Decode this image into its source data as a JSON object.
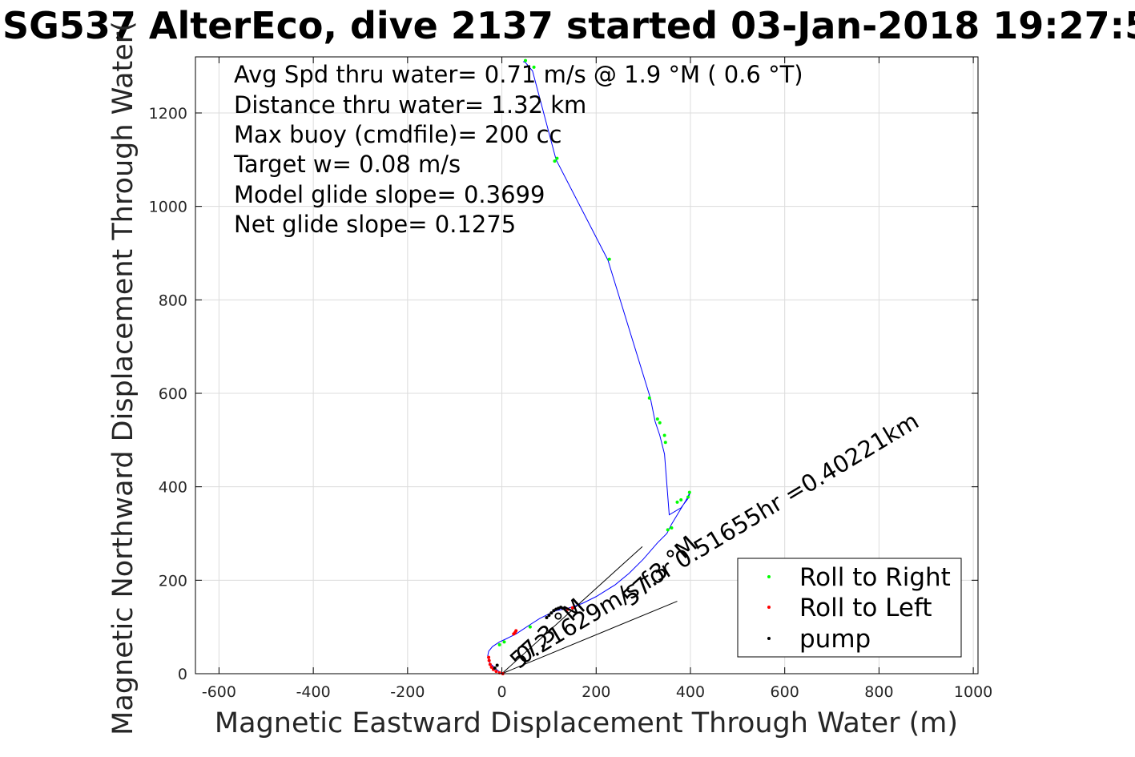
{
  "chart_data": {
    "type": "line",
    "title": "SG537 AlterEco, dive 2137 started 03-Jan-2018 19:27:5",
    "xlabel": "Magnetic Eastward Displacement Through Water (m)",
    "ylabel": "Magnetic Northward Displacement Through Water(",
    "xlim": [
      -650,
      1010
    ],
    "ylim": [
      0,
      1320
    ],
    "xticks": [
      -600,
      -400,
      -200,
      0,
      200,
      400,
      600,
      800,
      1000
    ],
    "yticks": [
      0,
      200,
      400,
      600,
      800,
      1000,
      1200
    ],
    "grid": true,
    "legend_position": "bottom-right",
    "info_lines": [
      "Avg Spd thru water=  0.71 m/s @   1.9 °M (  0.6 °T)",
      "Distance thru water=  1.32 km",
      "Max buoy (cmdfile)= 200 cc",
      "Target w= 0.08 m/s",
      "Model glide slope= 0.3699",
      "Net glide slope= 0.1275"
    ],
    "annotations": [
      "0.21629m/s for 0.51655hr =0.40221km",
      "57.3 °M",
      "57.3 °M"
    ],
    "colors": {
      "track": "#0000ff",
      "roll_right": "#00ff00",
      "roll_left": "#ff0000",
      "pump": "#000000",
      "grid": "#dcdcdc"
    },
    "series": [
      {
        "name": "track",
        "x": [
          0,
          -10,
          -25,
          -30,
          -28,
          -20,
          -5,
          10,
          30,
          45,
          60,
          80,
          100,
          115,
          140,
          170,
          200,
          240,
          270,
          300,
          330,
          350,
          360,
          375,
          390,
          400,
          395,
          380,
          355,
          345,
          335,
          325,
          315,
          225,
          115,
          65,
          50,
          45
        ],
        "y": [
          0,
          8,
          22,
          38,
          48,
          58,
          68,
          75,
          85,
          95,
          105,
          118,
          128,
          135,
          140,
          150,
          165,
          190,
          215,
          245,
          280,
          300,
          320,
          345,
          370,
          390,
          375,
          355,
          340,
          470,
          510,
          540,
          590,
          885,
          1100,
          1290,
          1308,
          1310
        ]
      }
    ],
    "scatter": [
      {
        "name": "Roll to Right",
        "x": [
          -5,
          5,
          60,
          330,
          335,
          345,
          347,
          313,
          228,
          117,
          112,
          68,
          50,
          372,
          380,
          395,
          398,
          352,
          360
        ],
        "y": [
          62,
          68,
          100,
          545,
          537,
          510,
          495,
          590,
          887,
          1103,
          1097,
          1298,
          1312,
          367,
          372,
          378,
          388,
          308,
          312
        ]
      },
      {
        "name": "Roll to Left",
        "x": [
          -28,
          -27,
          -25,
          -22,
          -18,
          -12,
          -5,
          2,
          25,
          28,
          30,
          140,
          150
        ],
        "y": [
          35,
          28,
          20,
          14,
          9,
          5,
          2,
          0,
          85,
          88,
          92,
          138,
          141
        ]
      },
      {
        "name": "pump",
        "x": [
          -15,
          -10,
          95,
          100,
          105,
          110,
          115,
          120,
          125,
          130
        ],
        "y": [
          12,
          18,
          120,
          125,
          130,
          135,
          138,
          140,
          142,
          140
        ]
      }
    ],
    "lines": [
      {
        "x": [
          0,
          298
        ],
        "y": [
          0,
          272
        ]
      },
      {
        "x": [
          0,
          372
        ],
        "y": [
          0,
          155
        ]
      }
    ]
  }
}
